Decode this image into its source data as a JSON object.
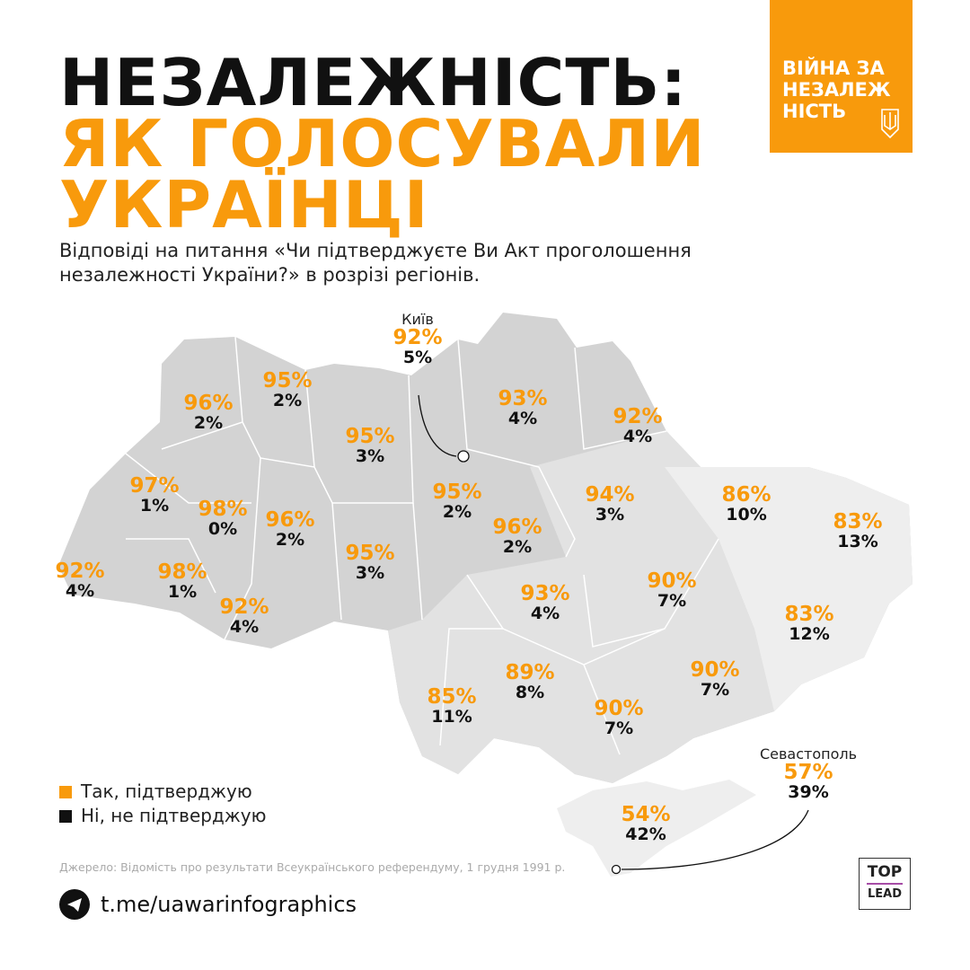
{
  "title": {
    "line1": "НЕЗАЛЕЖНІСТЬ:",
    "line2": "ЯК ГОЛОСУВАЛИ",
    "line3": "УКРАЇНЦІ"
  },
  "badge": {
    "text_lines": [
      "ВІЙНА ЗА",
      "НЕЗАЛЕЖ",
      "НІСТЬ"
    ],
    "icon": "trident-icon"
  },
  "subtitle": "Відповіді на питання «Чи підтверджуєте Ви Акт проголошення незалежності України?» в розрізі регіонів.",
  "colors": {
    "yes": "#f89a0c",
    "no": "#111111"
  },
  "regions": [
    {
      "yes": "96%",
      "no": "2%"
    },
    {
      "yes": "95%",
      "no": "2%"
    },
    {
      "yes": "95%",
      "no": "3%"
    },
    {
      "yes": "97%",
      "no": "1%"
    },
    {
      "yes": "98%",
      "no": "0%"
    },
    {
      "yes": "96%",
      "no": "2%"
    },
    {
      "yes": "95%",
      "no": "3%"
    },
    {
      "yes": "92%",
      "no": "4%"
    },
    {
      "yes": "98%",
      "no": "1%"
    },
    {
      "yes": "92%",
      "no": "4%"
    },
    {
      "city": "Київ",
      "yes": "92%",
      "no": "5%"
    },
    {
      "yes": "95%",
      "no": "2%"
    },
    {
      "yes": "93%",
      "no": "4%"
    },
    {
      "yes": "92%",
      "no": "4%"
    },
    {
      "yes": "94%",
      "no": "3%"
    },
    {
      "yes": "96%",
      "no": "2%"
    },
    {
      "yes": "86%",
      "no": "10%"
    },
    {
      "yes": "83%",
      "no": "13%"
    },
    {
      "yes": "93%",
      "no": "4%"
    },
    {
      "yes": "90%",
      "no": "7%"
    },
    {
      "yes": "83%",
      "no": "12%"
    },
    {
      "yes": "89%",
      "no": "8%"
    },
    {
      "yes": "90%",
      "no": "7%"
    },
    {
      "yes": "85%",
      "no": "11%"
    },
    {
      "yes": "90%",
      "no": "7%"
    },
    {
      "yes": "54%",
      "no": "42%"
    },
    {
      "city": "Севастополь",
      "yes": "57%",
      "no": "39%"
    }
  ],
  "legend": {
    "yes": "Так, підтверджую",
    "no": "Ні, не підтверджую"
  },
  "source": "Джерело: Відомість про результати Всеукраїнського референдуму, 1 грудня 1991 р.",
  "telegram": {
    "icon": "telegram-icon",
    "link": "t.me/uawarinfographics"
  },
  "logo": {
    "top": "TOP",
    "bottom": "LEAD"
  }
}
